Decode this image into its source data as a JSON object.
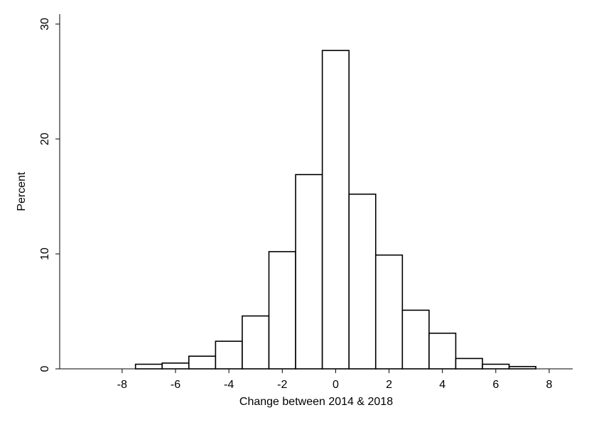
{
  "chart_data": {
    "type": "histogram",
    "x_label": "Change between 2014 & 2018",
    "y_label": "Percent",
    "bins": [
      -7.5,
      -6.5,
      -5.5,
      -4.5,
      -3.5,
      -2.5,
      -1.5,
      -0.5,
      0.5,
      1.5,
      2.5,
      3.5,
      4.5,
      5.5,
      6.5,
      7.5
    ],
    "values": [
      0.4,
      0.5,
      1.1,
      2.4,
      4.6,
      10.2,
      16.9,
      27.7,
      15.2,
      9.9,
      5.1,
      3.1,
      0.9,
      0.4,
      0.2
    ],
    "color": "#ffffff",
    "xlim": [
      -10.34,
      8.88
    ],
    "xticks": [
      -8,
      -6,
      -4,
      -2,
      0,
      2,
      4,
      6,
      8
    ],
    "ylim": [
      0,
      30.86
    ],
    "yticks": [
      0,
      10,
      20,
      30
    ]
  }
}
